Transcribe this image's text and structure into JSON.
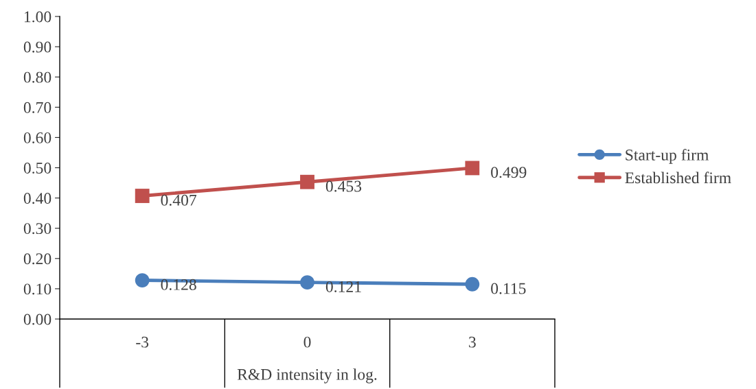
{
  "chart_data": {
    "type": "line",
    "xlabel": "R&D intensity in log.",
    "categories": [
      "-3",
      "0",
      "3"
    ],
    "series": [
      {
        "name": "Start-up firm",
        "color": "#4a7ebb",
        "marker": "circle",
        "values": [
          0.128,
          0.121,
          0.115
        ]
      },
      {
        "name": "Established firm",
        "color": "#c0504d",
        "marker": "square",
        "values": [
          0.407,
          0.453,
          0.499
        ]
      }
    ],
    "ylim": [
      0,
      1
    ],
    "yticks": [
      {
        "value": 0,
        "label": "0.00"
      },
      {
        "value": 0.1,
        "label": "0.10"
      },
      {
        "value": 0.2,
        "label": "0.20"
      },
      {
        "value": 0.3,
        "label": "0.30"
      },
      {
        "value": 0.4,
        "label": "0.40"
      },
      {
        "value": 0.5,
        "label": "0.50"
      },
      {
        "value": 0.6,
        "label": "0.60"
      },
      {
        "value": 0.7,
        "label": "0.70"
      },
      {
        "value": 0.8,
        "label": "0.80"
      },
      {
        "value": 0.9,
        "label": "0.90"
      },
      {
        "value": 1,
        "label": "1.00"
      }
    ],
    "data_labels": true,
    "legend": "right",
    "grid": false,
    "line_style": "solid"
  }
}
